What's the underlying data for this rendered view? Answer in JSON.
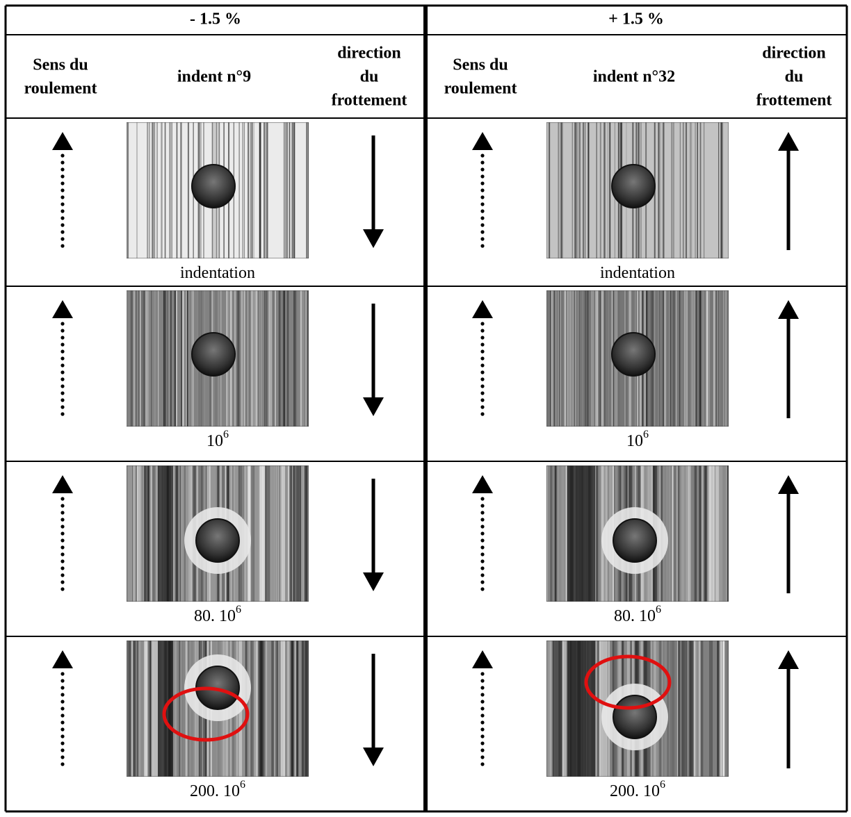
{
  "panels": [
    {
      "header": "- 1.5 %",
      "columns": [
        [
          "Sens du",
          "roulement"
        ],
        [
          "indent n°9"
        ],
        [
          "direction",
          "du",
          "frottement"
        ]
      ],
      "captions": [
        {
          "text": "indentation"
        },
        {
          "text": "10",
          "sup": "6"
        },
        {
          "text": "80. 10",
          "sup": "6"
        },
        {
          "text": "200. 10",
          "sup": "6"
        }
      ]
    },
    {
      "header": "+ 1.5 %",
      "columns": [
        [
          "Sens du",
          "roulement"
        ],
        [
          "indent n°32"
        ],
        [
          "direction",
          "du",
          "frottement"
        ]
      ],
      "captions": [
        {
          "text": "indentation"
        },
        {
          "text": "10",
          "sup": "6"
        },
        {
          "text": "80. 10",
          "sup": "6"
        },
        {
          "text": "200. 10",
          "sup": "6"
        }
      ]
    }
  ]
}
